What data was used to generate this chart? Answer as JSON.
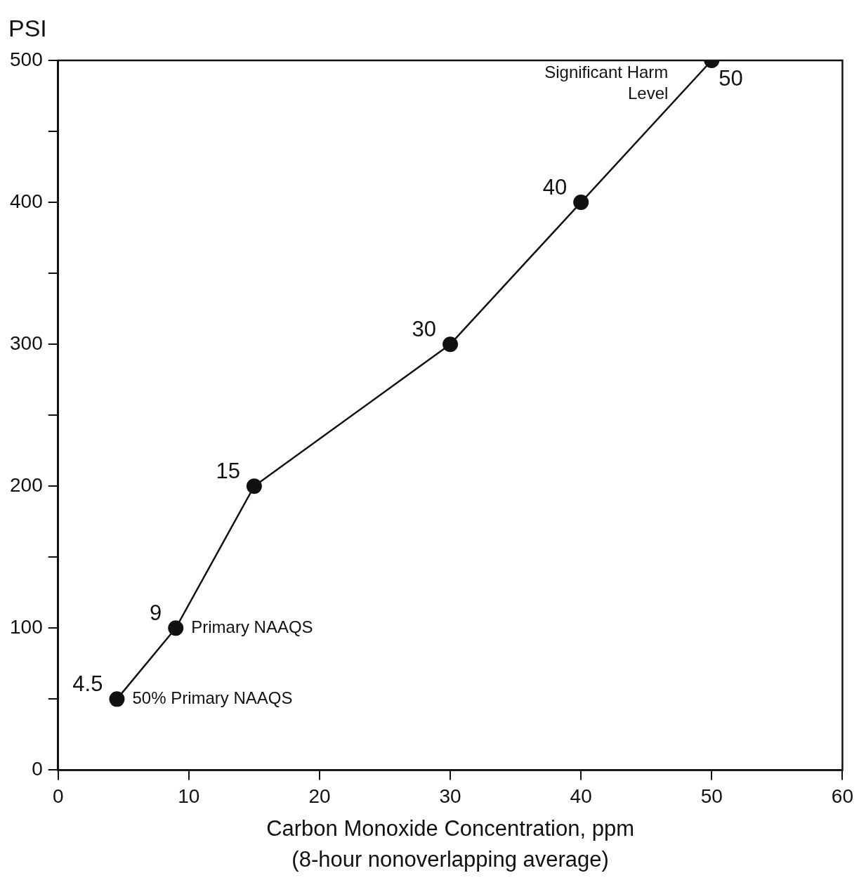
{
  "chart_data": {
    "type": "line",
    "ylabel": "PSI",
    "xlabel": "Carbon Monoxide Concentration, ppm\n(8-hour nonoverlapping average)",
    "x": [
      4.5,
      9,
      15,
      30,
      40,
      50
    ],
    "series": [
      {
        "color": "#111111",
        "values": [
          50,
          100,
          200,
          300,
          400,
          500
        ]
      }
    ],
    "xlim": [
      0,
      60
    ],
    "xticks": [
      0,
      10,
      20,
      30,
      40,
      50,
      60
    ],
    "ylim": [
      0,
      500
    ],
    "yticks": [
      0,
      {
        "value": 50,
        "label": null
      },
      100,
      {
        "value": 150,
        "label": null
      },
      200,
      {
        "value": 250,
        "label": null
      },
      300,
      {
        "value": 350,
        "label": null
      },
      400,
      {
        "value": 450,
        "label": null
      },
      500
    ],
    "annotations": [
      {
        "text": "4.5",
        "x": 4.5,
        "y": 50
      },
      {
        "text": "50% Primary NAAQS",
        "x": 4.5,
        "y": 50
      },
      {
        "text": "9",
        "x": 9,
        "y": 100
      },
      {
        "text": "Primary NAAQS",
        "x": 9,
        "y": 100
      },
      {
        "text": "15",
        "x": 15,
        "y": 200
      },
      {
        "text": "30",
        "x": 30,
        "y": 300
      },
      {
        "text": "40",
        "x": 40,
        "y": 400
      },
      {
        "text": "50",
        "x": 50,
        "y": 500
      },
      {
        "text": "Significant Harm\nLevel",
        "x": 50,
        "y": 500
      }
    ],
    "marker": "circle",
    "line_style": "solid",
    "grid": false,
    "legend": false
  }
}
